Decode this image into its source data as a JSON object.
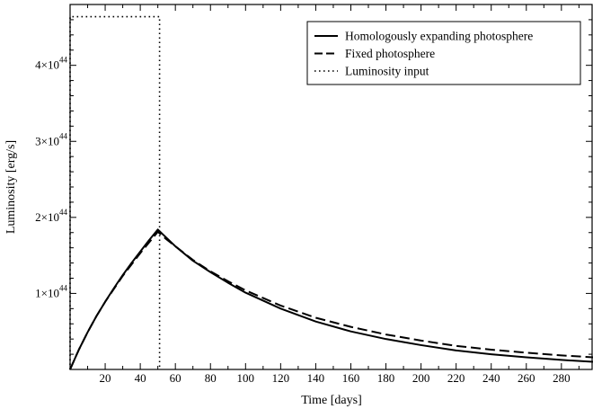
{
  "chart_data": {
    "type": "line",
    "title": "",
    "xlabel": "Time [days]",
    "ylabel": "Luminosity [erg/s]",
    "xlim": [
      0,
      298
    ],
    "ylim": [
      0,
      4.8e+44
    ],
    "x_ticks": [
      20,
      40,
      60,
      80,
      100,
      120,
      140,
      160,
      180,
      200,
      220,
      240,
      260,
      280
    ],
    "x_tick_labels": [
      "20",
      "40",
      "60",
      "80",
      "100",
      "120",
      "140",
      "160",
      "180",
      "200",
      "220",
      "240",
      "260",
      "280"
    ],
    "y_ticks": [
      {
        "value": 1e+44,
        "mantissa": "1×10",
        "exponent": "44"
      },
      {
        "value": 2e+44,
        "mantissa": "2×10",
        "exponent": "44"
      },
      {
        "value": 3e+44,
        "mantissa": "3×10",
        "exponent": "44"
      },
      {
        "value": 4e+44,
        "mantissa": "4×10",
        "exponent": "44"
      }
    ],
    "grid": false,
    "legend_position": "top-right",
    "series": [
      {
        "name": "Homologously expanding photosphere",
        "style": "solid",
        "x": [
          0,
          5,
          10,
          15,
          20,
          25,
          30,
          35,
          40,
          45,
          50,
          55,
          60,
          70,
          80,
          90,
          100,
          120,
          140,
          160,
          180,
          200,
          220,
          240,
          260,
          280,
          298
        ],
        "y": [
          0,
          2.6e+43,
          4.9e+43,
          7e+43,
          8.9e+43,
          1.07e+44,
          1.24e+44,
          1.4e+44,
          1.55e+44,
          1.7e+44,
          1.84e+44,
          1.73e+44,
          1.62e+44,
          1.43e+44,
          1.28e+44,
          1.14e+44,
          1.01e+44,
          8e+43,
          6.3e+43,
          5e+43,
          4e+43,
          3.2e+43,
          2.5e+43,
          2e+43,
          1.6e+43,
          1.25e+43,
          1e+43
        ]
      },
      {
        "name": "Fixed photosphere",
        "style": "dashed",
        "x": [
          0,
          5,
          10,
          15,
          20,
          25,
          30,
          35,
          40,
          45,
          50,
          55,
          60,
          70,
          80,
          90,
          100,
          120,
          140,
          160,
          180,
          200,
          220,
          240,
          260,
          280,
          298
        ],
        "y": [
          0,
          2.6e+43,
          4.9e+43,
          7e+43,
          8.9e+43,
          1.06e+44,
          1.23e+44,
          1.38e+44,
          1.53e+44,
          1.67e+44,
          1.81e+44,
          1.71e+44,
          1.62e+44,
          1.44e+44,
          1.29e+44,
          1.16e+44,
          1.04e+44,
          8.4e+43,
          6.8e+43,
          5.6e+43,
          4.6e+43,
          3.8e+43,
          3.1e+43,
          2.6e+43,
          2.2e+43,
          1.85e+43,
          1.6e+43
        ]
      },
      {
        "name": "Luminosity input",
        "style": "dotted",
        "x": [
          0,
          0,
          51,
          51
        ],
        "y": [
          0,
          4.64e+44,
          4.64e+44,
          0
        ]
      }
    ]
  }
}
